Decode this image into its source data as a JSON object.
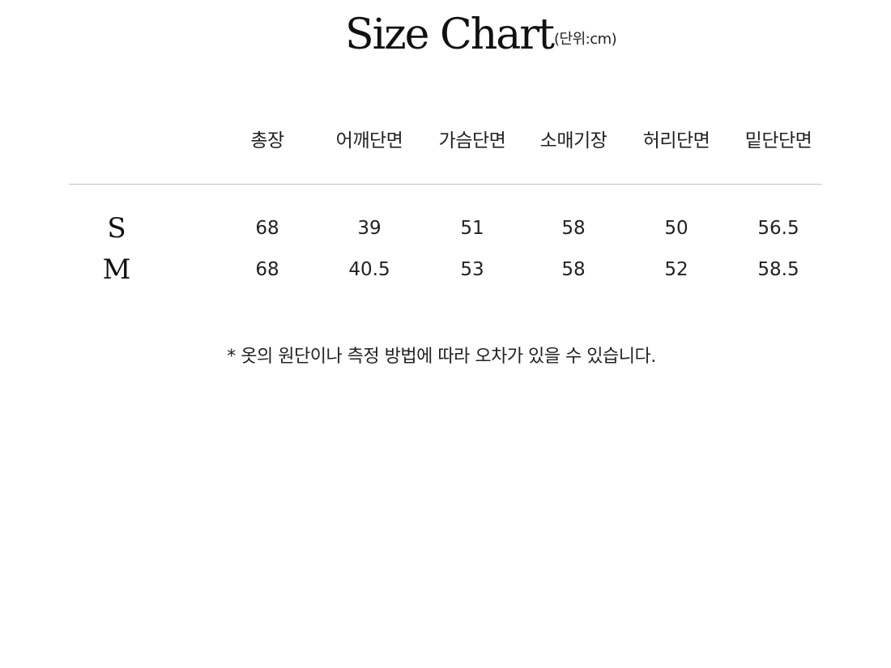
{
  "title": "Size Chart",
  "unit": "(단위:cm)",
  "table": {
    "columns": [
      "총장",
      "어깨단면",
      "가슴단면",
      "소매기장",
      "허리단면",
      "밑단단면"
    ],
    "rows": [
      {
        "size": "S",
        "values": [
          "68",
          "39",
          "51",
          "58",
          "50",
          "56.5"
        ]
      },
      {
        "size": "M",
        "values": [
          "68",
          "40.5",
          "53",
          "58",
          "52",
          "58.5"
        ]
      }
    ]
  },
  "note": "* 옷의 원단이나 측정 방법에 따라 오차가 있을 수 있습니다."
}
